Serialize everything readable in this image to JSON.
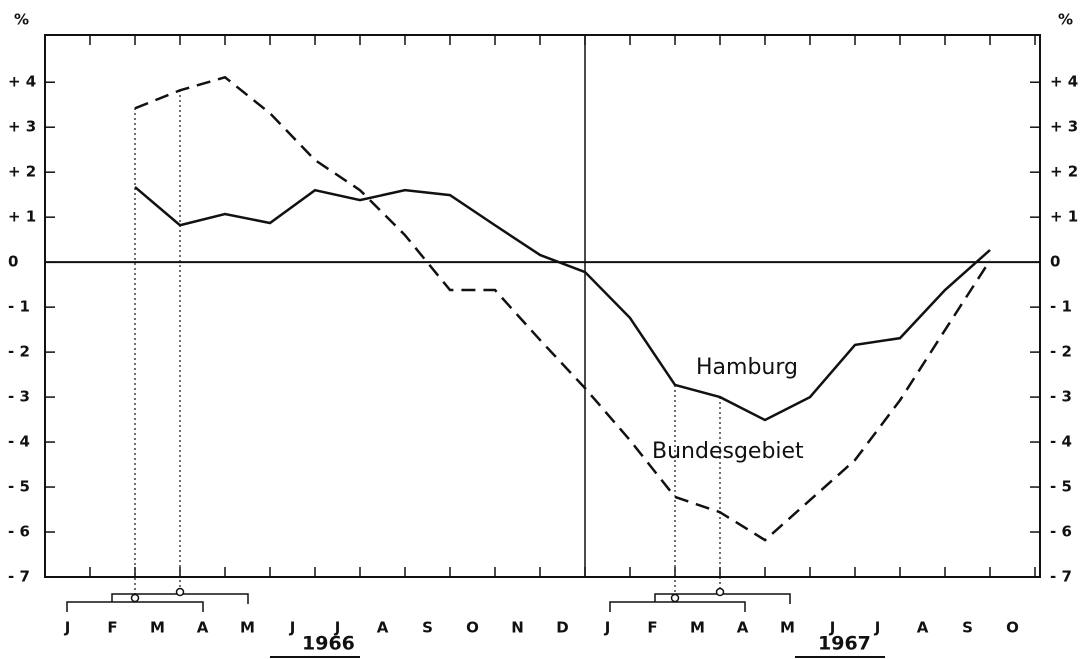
{
  "chart_data": {
    "type": "line",
    "unit_left": "%",
    "unit_right": "%",
    "categories": [
      "J",
      "F",
      "M",
      "A",
      "M",
      "J",
      "J",
      "A",
      "S",
      "O",
      "N",
      "D",
      "J",
      "F",
      "M",
      "A",
      "M",
      "J",
      "J",
      "A",
      "S",
      "O"
    ],
    "year_labels": [
      "1966",
      "1967"
    ],
    "series": [
      {
        "name": "Hamburg",
        "color": "#111",
        "style": "solid",
        "values": [
          null,
          1.67,
          0.82,
          1.07,
          0.87,
          1.6,
          1.38,
          1.6,
          1.49,
          0.82,
          0.16,
          -0.22,
          -1.24,
          -2.73,
          -3.0,
          -3.51,
          -3.0,
          -1.84,
          -1.69,
          -0.62,
          0.27,
          null
        ]
      },
      {
        "name": "Bundesgebiet",
        "color": "#111",
        "style": "dashed",
        "values": [
          null,
          3.42,
          3.82,
          4.11,
          3.31,
          2.27,
          1.6,
          0.6,
          -0.62,
          -0.62,
          -1.73,
          -2.8,
          -3.96,
          -5.22,
          -5.56,
          -6.18,
          -5.29,
          -4.4,
          -3.07,
          -1.51,
          0.04,
          null
        ]
      }
    ],
    "ylim": [
      -7,
      5.05
    ],
    "yticks": [
      {
        "value": 4,
        "label": "+ 4"
      },
      {
        "value": 3,
        "label": "+ 3"
      },
      {
        "value": 2,
        "label": "+ 2"
      },
      {
        "value": 1,
        "label": "+ 1"
      },
      0,
      {
        "value": -1,
        "label": "- 1"
      },
      {
        "value": -2,
        "label": "- 2"
      },
      {
        "value": -3,
        "label": "- 3"
      },
      {
        "value": -4,
        "label": "- 4"
      },
      {
        "value": -5,
        "label": "- 5"
      },
      {
        "value": -6,
        "label": "- 6"
      },
      {
        "value": -7,
        "label": "- 7"
      }
    ],
    "grid": false
  }
}
